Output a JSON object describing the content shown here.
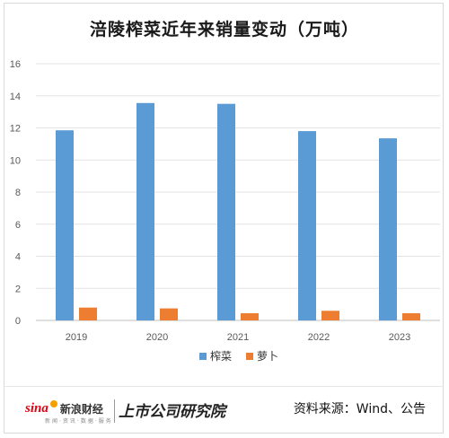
{
  "chart_data": {
    "type": "bar",
    "title": "涪陵榨菜近年来销量变动（万吨）",
    "categories": [
      "2019",
      "2020",
      "2021",
      "2022",
      "2023"
    ],
    "series": [
      {
        "name": "榨菜",
        "values": [
          11.85,
          13.55,
          13.5,
          11.8,
          11.35
        ],
        "color": "#5b9bd5"
      },
      {
        "name": "萝卜",
        "values": [
          0.8,
          0.75,
          0.45,
          0.6,
          0.45
        ],
        "color": "#ed7d31"
      }
    ],
    "ylim": [
      0,
      16
    ],
    "yticks": [
      "0",
      "2",
      "4",
      "6",
      "8",
      "10",
      "12",
      "14",
      "16"
    ],
    "grid": true,
    "legend": "bottom"
  },
  "footer": {
    "sina_brand": "新浪财经",
    "sina_sub": "新闻·资讯·数据·服务",
    "research_brand": "上市公司研究院",
    "source": "资料来源：Wind、公告"
  }
}
